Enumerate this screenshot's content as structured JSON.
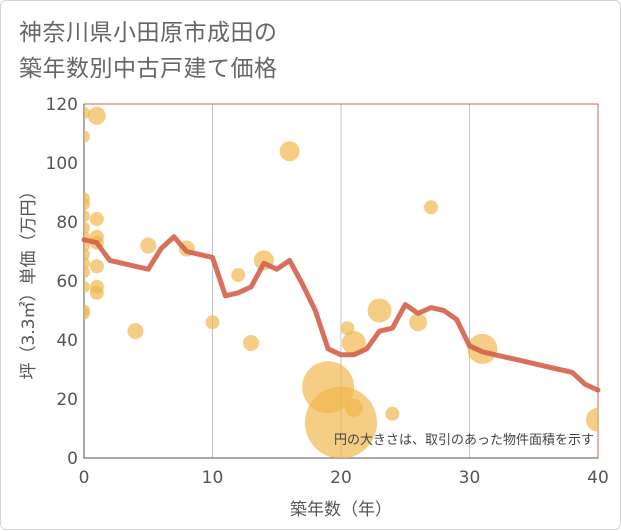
{
  "chart_data": {
    "type": "scatter",
    "title": [
      "神奈川県小田原市成田の",
      "築年数別中古戸建て価格"
    ],
    "xlabel": "築年数（年）",
    "ylabel": "坪（3.3㎡）単価（万円）",
    "xlim": [
      0,
      40
    ],
    "ylim": [
      0,
      120
    ],
    "xticks": [
      0,
      10,
      20,
      30,
      40
    ],
    "yticks": [
      0,
      20,
      40,
      60,
      80,
      100,
      120
    ],
    "note": "円の大きさは、取引のあった物件面積を示す",
    "colors": {
      "bubble": "#f0b64a",
      "line": "#d4614a",
      "grid": "#b8c6d4",
      "frame": "#c96a5a"
    },
    "scatter": [
      {
        "x": 0,
        "y": 117,
        "r": 6
      },
      {
        "x": 0,
        "y": 109,
        "r": 6
      },
      {
        "x": 0,
        "y": 88,
        "r": 6
      },
      {
        "x": 0,
        "y": 86,
        "r": 6
      },
      {
        "x": 0,
        "y": 82,
        "r": 6
      },
      {
        "x": 0,
        "y": 78,
        "r": 6
      },
      {
        "x": 0,
        "y": 75,
        "r": 6
      },
      {
        "x": 0,
        "y": 72,
        "r": 6
      },
      {
        "x": 0,
        "y": 69,
        "r": 6
      },
      {
        "x": 0,
        "y": 66,
        "r": 6
      },
      {
        "x": 0,
        "y": 63,
        "r": 6
      },
      {
        "x": 0,
        "y": 58,
        "r": 6
      },
      {
        "x": 0,
        "y": 50,
        "r": 6
      },
      {
        "x": 0,
        "y": 49,
        "r": 6
      },
      {
        "x": 1,
        "y": 116,
        "r": 9
      },
      {
        "x": 1,
        "y": 81,
        "r": 7
      },
      {
        "x": 1,
        "y": 75,
        "r": 7
      },
      {
        "x": 1,
        "y": 73,
        "r": 7
      },
      {
        "x": 1,
        "y": 65,
        "r": 7
      },
      {
        "x": 1,
        "y": 58,
        "r": 7
      },
      {
        "x": 1,
        "y": 56,
        "r": 7
      },
      {
        "x": 4,
        "y": 43,
        "r": 8
      },
      {
        "x": 5,
        "y": 72,
        "r": 8
      },
      {
        "x": 8,
        "y": 71,
        "r": 8
      },
      {
        "x": 10,
        "y": 46,
        "r": 7
      },
      {
        "x": 12,
        "y": 62,
        "r": 7
      },
      {
        "x": 13,
        "y": 39,
        "r": 8
      },
      {
        "x": 14,
        "y": 67,
        "r": 10
      },
      {
        "x": 16,
        "y": 104,
        "r": 10
      },
      {
        "x": 19,
        "y": 24,
        "r": 26
      },
      {
        "x": 20,
        "y": 12,
        "r": 36
      },
      {
        "x": 20.5,
        "y": 44,
        "r": 7
      },
      {
        "x": 21,
        "y": 39,
        "r": 12
      },
      {
        "x": 21,
        "y": 17,
        "r": 9
      },
      {
        "x": 23,
        "y": 50,
        "r": 12
      },
      {
        "x": 24,
        "y": 15,
        "r": 7
      },
      {
        "x": 26,
        "y": 46,
        "r": 9
      },
      {
        "x": 27,
        "y": 85,
        "r": 7
      },
      {
        "x": 31,
        "y": 37,
        "r": 15
      },
      {
        "x": 40,
        "y": 13,
        "r": 12
      }
    ],
    "trend": {
      "x": [
        0,
        1,
        2,
        4,
        5,
        6,
        7,
        8,
        10,
        11,
        12,
        13,
        14,
        15,
        16,
        17,
        18,
        19,
        20,
        21,
        22,
        23,
        24,
        25,
        26,
        27,
        28,
        29,
        30,
        31,
        32,
        33,
        34,
        35,
        36,
        37,
        38,
        39,
        40
      ],
      "y": [
        74,
        73,
        67,
        65,
        64,
        71,
        75,
        70,
        68,
        55,
        56,
        58,
        66,
        64,
        67,
        59,
        50,
        37,
        35,
        35,
        37,
        43,
        44,
        52,
        49,
        51,
        50,
        47,
        38,
        36,
        35,
        34,
        33,
        32,
        31,
        30,
        29,
        25,
        23
      ]
    }
  }
}
